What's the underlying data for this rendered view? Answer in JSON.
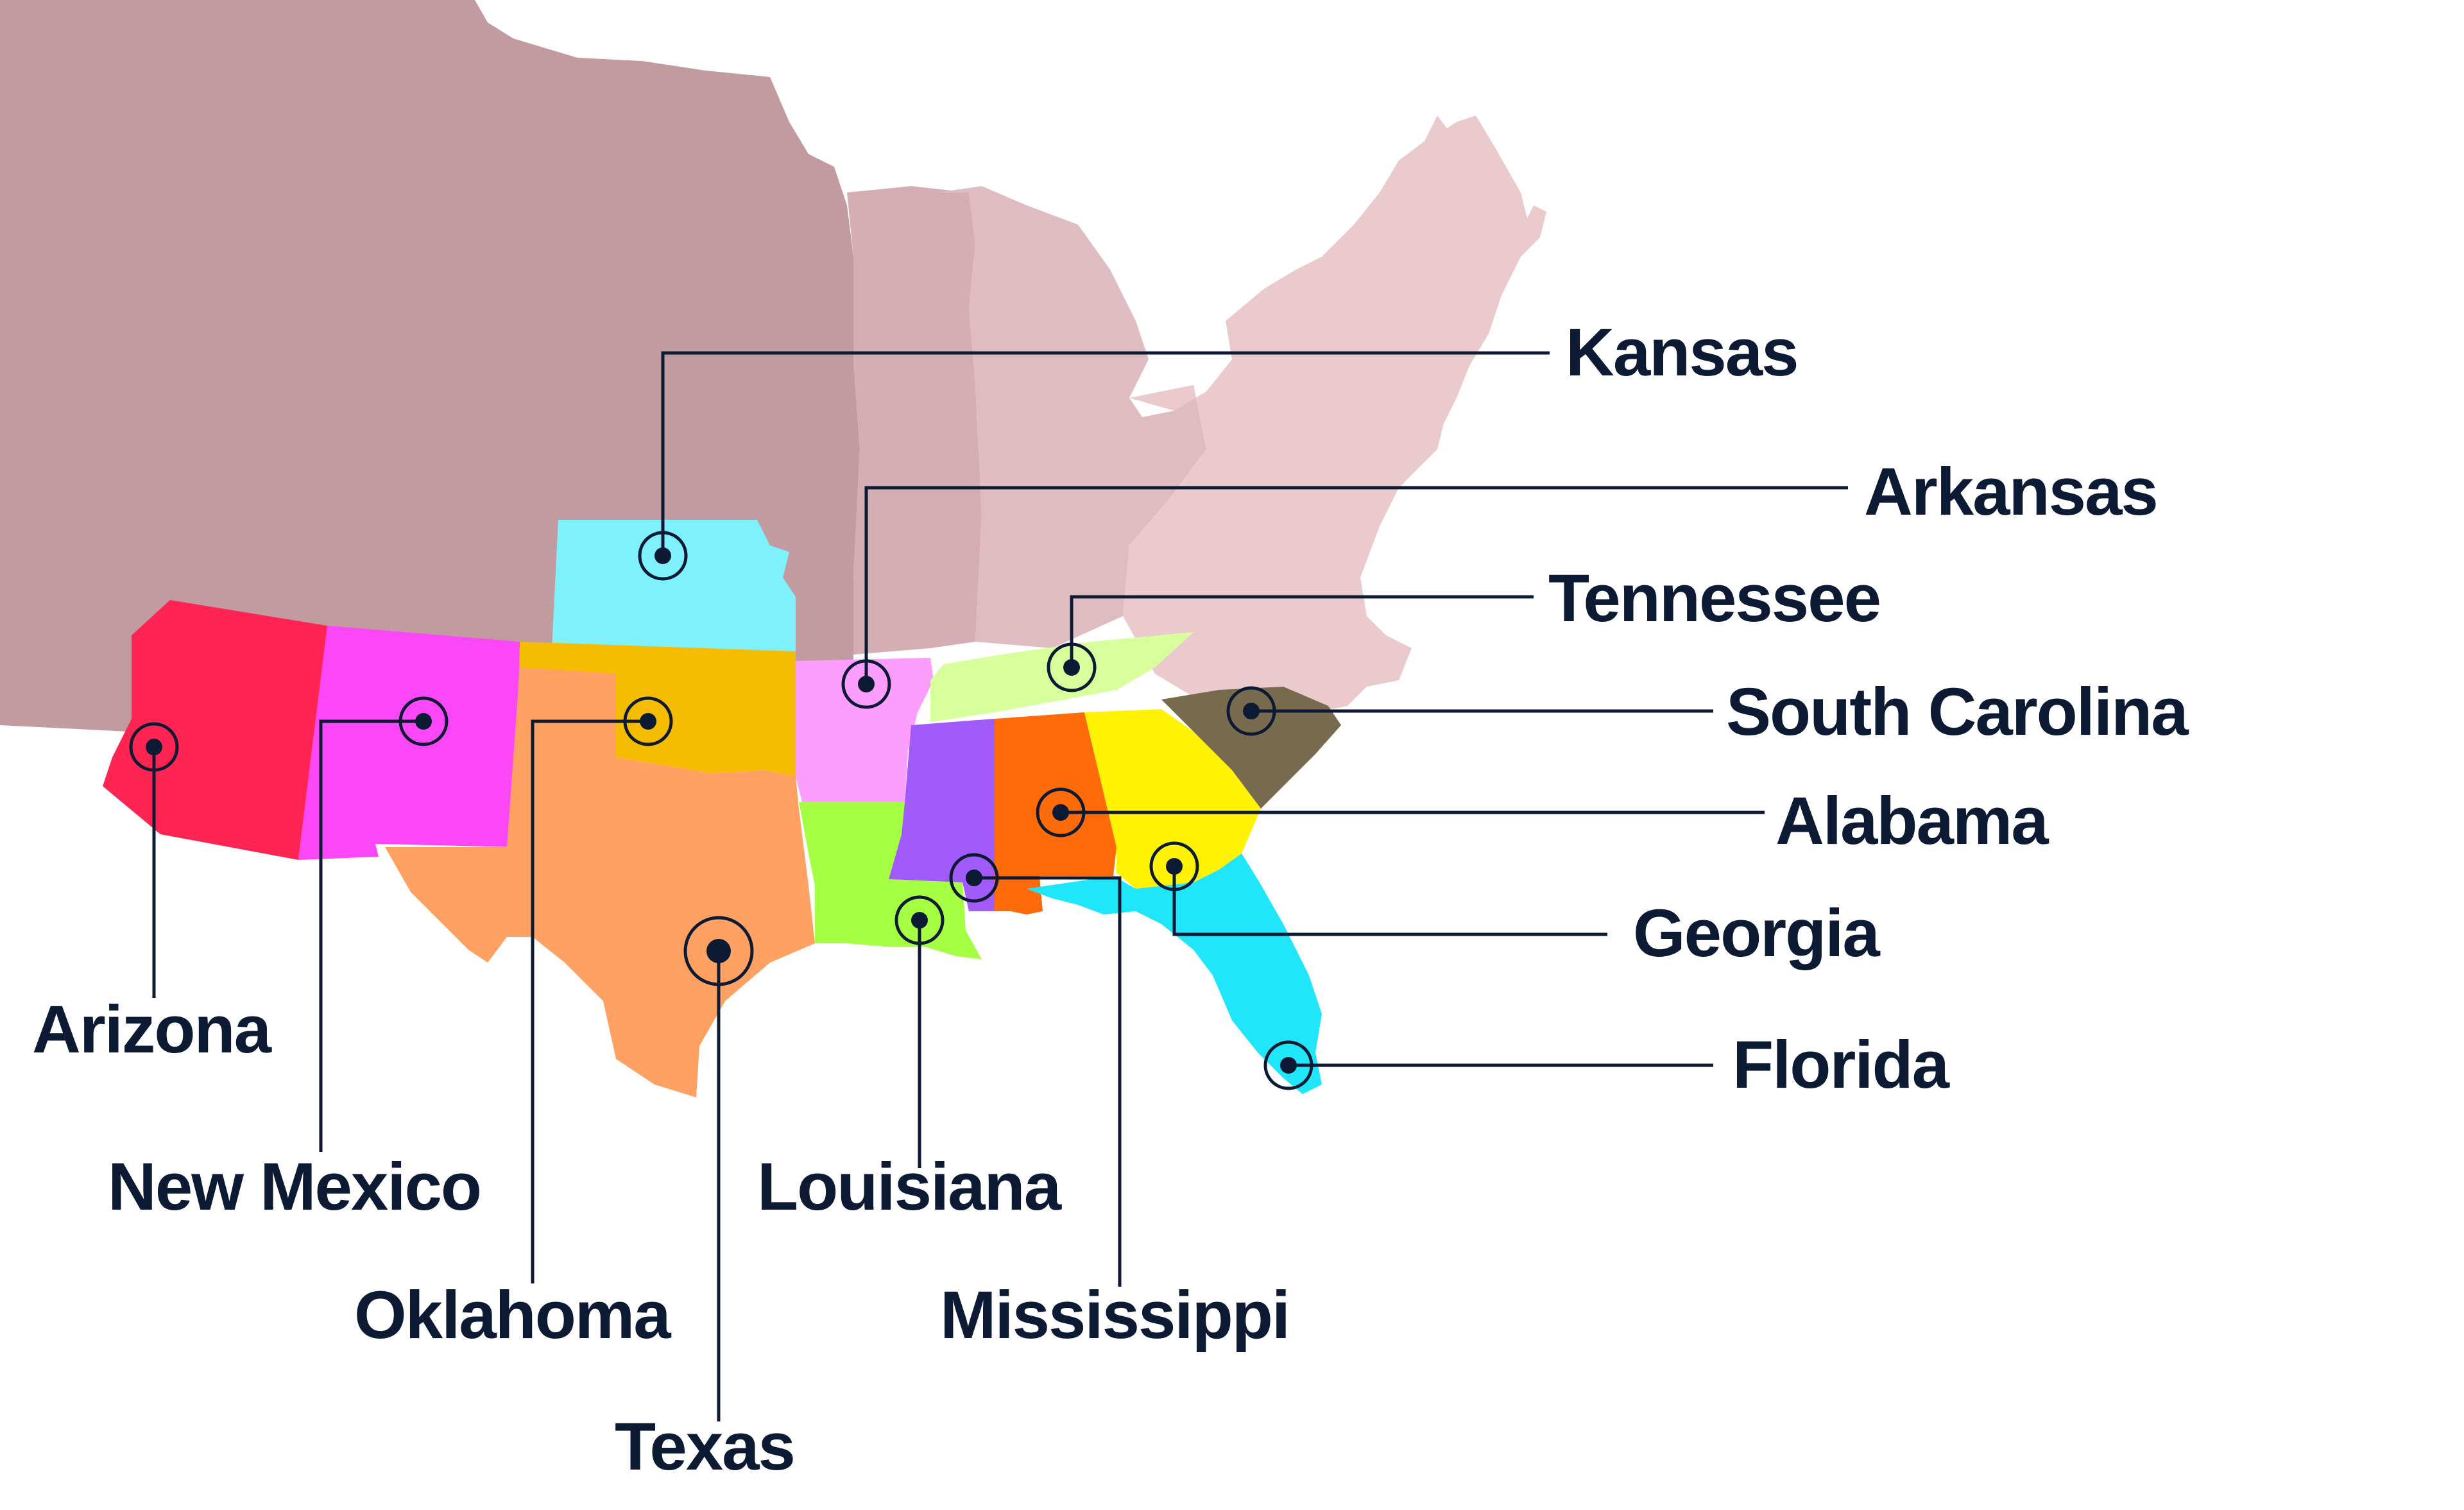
{
  "map": {
    "background_colors": {
      "west": "#c29ba1",
      "midwest": "#d4aeb4",
      "central": "#dfbcc2",
      "east": "#ebcace"
    },
    "states": [
      {
        "id": "kansas",
        "label": "Kansas",
        "color": "#7ff1fd"
      },
      {
        "id": "arkansas",
        "label": "Arkansas",
        "color": "#fd9dfd"
      },
      {
        "id": "tennessee",
        "label": "Tennessee",
        "color": "#d7ff9c"
      },
      {
        "id": "south-carolina",
        "label": "South Carolina",
        "color": "#786a4e"
      },
      {
        "id": "alabama",
        "label": "Alabama",
        "color": "#ff6b08"
      },
      {
        "id": "georgia",
        "label": "Georgia",
        "color": "#fff205"
      },
      {
        "id": "florida",
        "label": "Florida",
        "color": "#1fe6fa"
      },
      {
        "id": "arizona",
        "label": "Arizona",
        "color": "#ff2452"
      },
      {
        "id": "new-mexico",
        "label": "New Mexico",
        "color": "#fb47f8"
      },
      {
        "id": "oklahoma",
        "label": "Oklahoma",
        "color": "#f6bc00"
      },
      {
        "id": "texas",
        "label": "Texas",
        "color": "#ffa162"
      },
      {
        "id": "louisiana",
        "label": "Louisiana",
        "color": "#a5ff42"
      },
      {
        "id": "mississippi",
        "label": "Mississippi",
        "color": "#a25bfb"
      }
    ]
  }
}
